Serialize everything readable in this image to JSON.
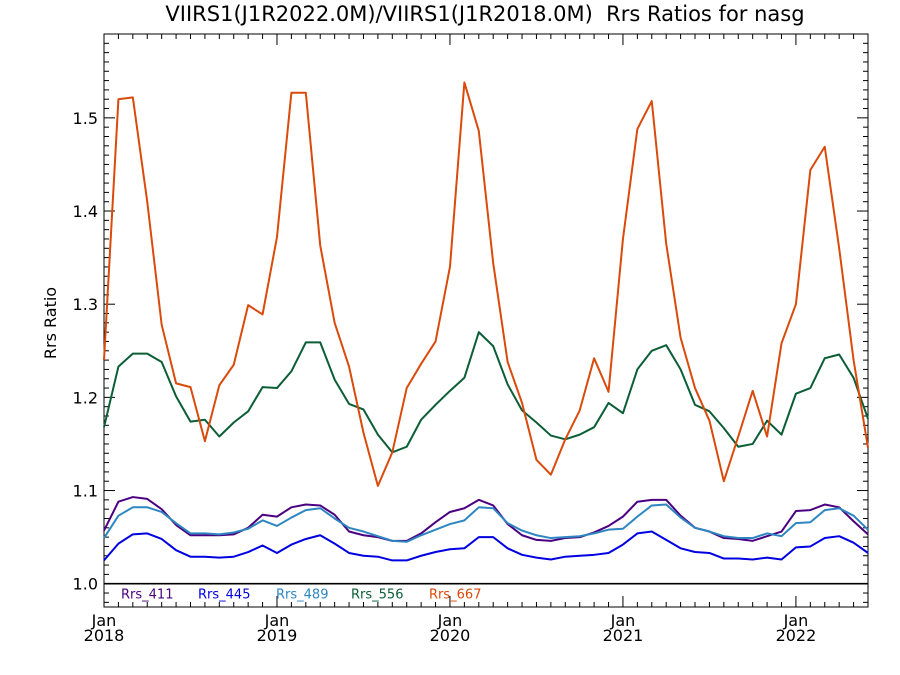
{
  "chart_data": {
    "type": "line",
    "title": "VIIRS1(J1R2022.0M)/VIIRS1(J1R2018.0M)  Rrs Ratios for nasg",
    "ylabel": "Rrs Ratio",
    "xlabel": "",
    "xlim": [
      "2018-01",
      "2022-06"
    ],
    "ylim": [
      0.975,
      1.59
    ],
    "yticks": [
      1.0,
      1.1,
      1.2,
      1.3,
      1.4,
      1.5
    ],
    "ytick_labels": [
      "1.0",
      "1.1",
      "1.2",
      "1.3",
      "1.4",
      "1.5"
    ],
    "xticks": [
      {
        "date": "2018-01",
        "month": "Jan",
        "year": "2018"
      },
      {
        "date": "2019-01",
        "month": "Jan",
        "year": "2019"
      },
      {
        "date": "2020-01",
        "month": "Jan",
        "year": "2020"
      },
      {
        "date": "2021-01",
        "month": "Jan",
        "year": "2021"
      },
      {
        "date": "2022-01",
        "month": "Jan",
        "year": "2022"
      }
    ],
    "reference_line": 1.0,
    "legend_position": "bottom-left",
    "x": [
      "2018-01",
      "2018-02",
      "2018-03",
      "2018-04",
      "2018-05",
      "2018-06",
      "2018-07",
      "2018-08",
      "2018-09",
      "2018-10",
      "2018-11",
      "2018-12",
      "2019-01",
      "2019-02",
      "2019-03",
      "2019-04",
      "2019-05",
      "2019-06",
      "2019-07",
      "2019-08",
      "2019-09",
      "2019-10",
      "2019-11",
      "2019-12",
      "2020-01",
      "2020-02",
      "2020-03",
      "2020-04",
      "2020-05",
      "2020-06",
      "2020-07",
      "2020-08",
      "2020-09",
      "2020-10",
      "2020-11",
      "2020-12",
      "2021-01",
      "2021-02",
      "2021-03",
      "2021-04",
      "2021-05",
      "2021-06",
      "2021-07",
      "2021-08",
      "2021-09",
      "2021-10",
      "2021-11",
      "2021-12",
      "2022-01",
      "2022-02",
      "2022-03",
      "2022-04",
      "2022-05",
      "2022-06"
    ],
    "series": [
      {
        "name": "Rrs_411",
        "color": "#4b0082",
        "values": [
          1.057,
          1.088,
          1.093,
          1.091,
          1.08,
          1.063,
          1.052,
          1.052,
          1.052,
          1.053,
          1.06,
          1.074,
          1.072,
          1.082,
          1.085,
          1.084,
          1.074,
          1.056,
          1.052,
          1.05,
          1.046,
          1.046,
          1.054,
          1.066,
          1.077,
          1.081,
          1.09,
          1.084,
          1.064,
          1.052,
          1.047,
          1.046,
          1.049,
          1.05,
          1.055,
          1.062,
          1.072,
          1.088,
          1.09,
          1.09,
          1.073,
          1.06,
          1.056,
          1.049,
          1.048,
          1.046,
          1.051,
          1.056,
          1.078,
          1.079,
          1.085,
          1.082,
          1.067,
          1.053
        ]
      },
      {
        "name": "Rrs_445",
        "color": "#0000e0",
        "values": [
          1.025,
          1.043,
          1.053,
          1.054,
          1.048,
          1.036,
          1.029,
          1.029,
          1.028,
          1.029,
          1.034,
          1.041,
          1.033,
          1.042,
          1.048,
          1.052,
          1.043,
          1.033,
          1.03,
          1.029,
          1.025,
          1.025,
          1.03,
          1.034,
          1.037,
          1.038,
          1.05,
          1.05,
          1.038,
          1.031,
          1.028,
          1.026,
          1.029,
          1.03,
          1.031,
          1.033,
          1.042,
          1.054,
          1.056,
          1.047,
          1.038,
          1.034,
          1.033,
          1.027,
          1.027,
          1.026,
          1.028,
          1.026,
          1.039,
          1.04,
          1.049,
          1.051,
          1.044,
          1.033
        ]
      },
      {
        "name": "Rrs_489",
        "color": "#2e86c1",
        "values": [
          1.049,
          1.073,
          1.082,
          1.082,
          1.077,
          1.065,
          1.054,
          1.054,
          1.053,
          1.055,
          1.059,
          1.068,
          1.062,
          1.071,
          1.079,
          1.081,
          1.07,
          1.06,
          1.056,
          1.051,
          1.046,
          1.045,
          1.052,
          1.058,
          1.064,
          1.068,
          1.082,
          1.081,
          1.065,
          1.057,
          1.052,
          1.049,
          1.05,
          1.051,
          1.054,
          1.058,
          1.059,
          1.072,
          1.084,
          1.085,
          1.071,
          1.06,
          1.056,
          1.051,
          1.049,
          1.049,
          1.054,
          1.051,
          1.065,
          1.066,
          1.079,
          1.081,
          1.073,
          1.058
        ]
      },
      {
        "name": "Rrs_556",
        "color": "#0b5e35",
        "values": [
          1.168,
          1.233,
          1.247,
          1.247,
          1.238,
          1.201,
          1.174,
          1.176,
          1.158,
          1.173,
          1.185,
          1.211,
          1.21,
          1.228,
          1.259,
          1.259,
          1.219,
          1.193,
          1.187,
          1.16,
          1.141,
          1.147,
          1.176,
          1.192,
          1.207,
          1.221,
          1.27,
          1.255,
          1.214,
          1.186,
          1.173,
          1.159,
          1.155,
          1.16,
          1.168,
          1.194,
          1.183,
          1.23,
          1.25,
          1.256,
          1.23,
          1.192,
          1.185,
          1.167,
          1.147,
          1.15,
          1.175,
          1.16,
          1.204,
          1.21,
          1.242,
          1.246,
          1.221,
          1.177
        ]
      },
      {
        "name": "Rrs_667",
        "color": "#d94a0b",
        "values": [
          1.24,
          1.52,
          1.522,
          1.41,
          1.278,
          1.215,
          1.211,
          1.153,
          1.213,
          1.235,
          1.299,
          1.289,
          1.372,
          1.527,
          1.527,
          1.363,
          1.28,
          1.233,
          1.162,
          1.105,
          1.141,
          1.21,
          1.236,
          1.26,
          1.34,
          1.538,
          1.486,
          1.344,
          1.238,
          1.194,
          1.133,
          1.117,
          1.155,
          1.186,
          1.242,
          1.206,
          1.37,
          1.488,
          1.518,
          1.365,
          1.264,
          1.21,
          1.175,
          1.11,
          1.158,
          1.207,
          1.158,
          1.258,
          1.3,
          1.444,
          1.469,
          1.36,
          1.24,
          1.146
        ]
      }
    ]
  }
}
